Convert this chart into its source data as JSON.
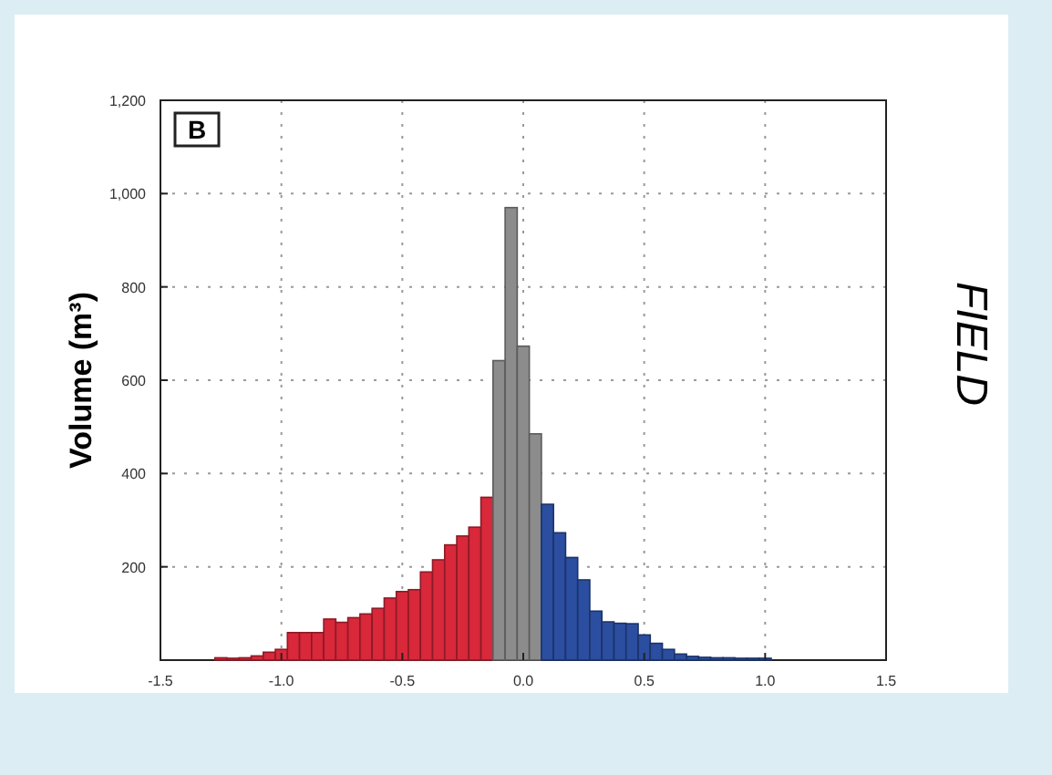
{
  "chart_data": {
    "type": "histogram",
    "title": "FIELD",
    "ylabel": "Volume  (m³)",
    "annotations": [
      "B"
    ],
    "bins": [
      -1.275,
      -1.225,
      -1.175,
      -1.125,
      -1.075,
      -1.025,
      -0.975,
      -0.925,
      -0.875,
      -0.825,
      -0.775,
      -0.725,
      -0.675,
      -0.625,
      -0.575,
      -0.525,
      -0.475,
      -0.425,
      -0.375,
      -0.325,
      -0.275,
      -0.225,
      -0.175,
      -0.125,
      -0.075,
      -0.025,
      0.025,
      0.075,
      0.125,
      0.175,
      0.225,
      0.275,
      0.325,
      0.375,
      0.425,
      0.475,
      0.525,
      0.575,
      0.625,
      0.675,
      0.725,
      0.775,
      0.825,
      0.875,
      0.925,
      0.975,
      1.025
    ],
    "values": [
      5,
      4,
      5,
      9,
      17,
      23,
      59,
      59,
      59,
      88,
      81,
      91,
      99,
      111,
      133,
      147,
      151,
      189,
      215,
      247,
      266,
      285,
      349,
      642,
      970,
      673,
      485,
      334,
      273,
      220,
      172,
      105,
      82,
      79,
      78,
      54,
      36,
      23,
      13,
      8,
      6,
      5,
      5,
      4,
      4,
      4
    ],
    "colors": [
      "#d8283a",
      "#d8283a",
      "#d8283a",
      "#d8283a",
      "#d8283a",
      "#d8283a",
      "#d8283a",
      "#d8283a",
      "#d8283a",
      "#d8283a",
      "#d8283a",
      "#d8283a",
      "#d8283a",
      "#d8283a",
      "#d8283a",
      "#d8283a",
      "#d8283a",
      "#d8283a",
      "#d8283a",
      "#d8283a",
      "#d8283a",
      "#d8283a",
      "#d8283a",
      "#8c8c8c",
      "#8c8c8c",
      "#8c8c8c",
      "#8c8c8c",
      "#2b4ea0",
      "#2b4ea0",
      "#2b4ea0",
      "#2b4ea0",
      "#2b4ea0",
      "#2b4ea0",
      "#2b4ea0",
      "#2b4ea0",
      "#2b4ea0",
      "#2b4ea0",
      "#2b4ea0",
      "#2b4ea0",
      "#2b4ea0",
      "#2b4ea0",
      "#2b4ea0",
      "#2b4ea0",
      "#2b4ea0",
      "#2b4ea0",
      "#2b4ea0"
    ],
    "xlim": [
      -1.5,
      1.5
    ],
    "xticks": [
      -1.5,
      {
        "value": -1,
        "label": "-1.0"
      },
      -0.5,
      {
        "value": 0,
        "label": "0.0"
      },
      0.5,
      {
        "value": 1,
        "label": "1.0"
      },
      1.5
    ],
    "ylim": [
      0,
      1200
    ],
    "yticks": [
      {
        "value": 0,
        "label": null
      },
      200,
      400,
      600,
      800,
      {
        "value": 1000,
        "label": "1,000"
      },
      {
        "value": 1200,
        "label": "1,200"
      }
    ],
    "grid": true
  }
}
